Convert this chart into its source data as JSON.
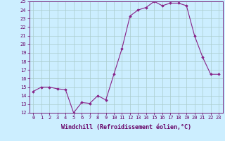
{
  "x": [
    0,
    1,
    2,
    3,
    4,
    5,
    6,
    7,
    8,
    9,
    10,
    11,
    12,
    13,
    14,
    15,
    16,
    17,
    18,
    19,
    20,
    21,
    22,
    23
  ],
  "y": [
    14.5,
    15.0,
    15.0,
    14.8,
    14.7,
    12.0,
    13.2,
    13.1,
    14.0,
    13.5,
    16.5,
    19.5,
    23.3,
    24.0,
    24.3,
    25.0,
    24.5,
    24.8,
    24.8,
    24.5,
    21.0,
    18.5,
    16.5,
    16.5
  ],
  "line_color": "#882288",
  "marker": "D",
  "marker_size": 1.8,
  "bg_color": "#cceeff",
  "grid_color": "#aacccc",
  "xlabel": "Windchill (Refroidissement éolien,°C)",
  "ylim": [
    12,
    25
  ],
  "xlim": [
    -0.5,
    23.5
  ],
  "yticks": [
    12,
    13,
    14,
    15,
    16,
    17,
    18,
    19,
    20,
    21,
    22,
    23,
    24,
    25
  ],
  "xticks": [
    0,
    1,
    2,
    3,
    4,
    5,
    6,
    7,
    8,
    9,
    10,
    11,
    12,
    13,
    14,
    15,
    16,
    17,
    18,
    19,
    20,
    21,
    22,
    23
  ],
  "tick_fontsize": 5.0,
  "xlabel_fontsize": 6.0,
  "axis_color": "#660066",
  "linewidth": 0.8
}
